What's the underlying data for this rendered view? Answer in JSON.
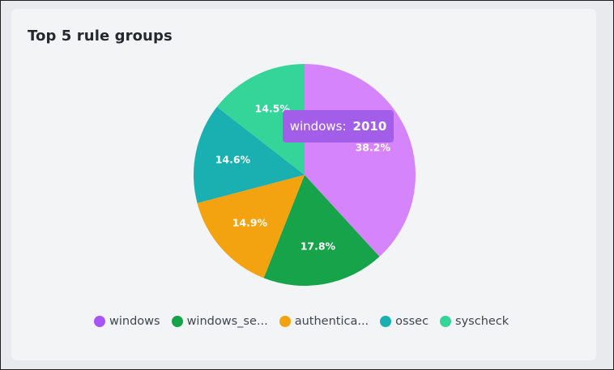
{
  "panel": {
    "title": "Top 5 rule groups"
  },
  "chart_data": {
    "type": "pie",
    "title": "Top 5 rule groups",
    "series": [
      {
        "name": "windows",
        "value": 2010,
        "label": "38.2%",
        "color": "#d684fb",
        "legend_color": "#a855f7",
        "legend_label": "windows"
      },
      {
        "name": "windows_security",
        "label": "17.8%",
        "color": "#17a34a",
        "legend_color": "#17a34a",
        "legend_label": "windows_se..."
      },
      {
        "name": "authentication",
        "label": "14.9%",
        "color": "#f4a310",
        "legend_color": "#f4a310",
        "legend_label": "authentica..."
      },
      {
        "name": "ossec",
        "label": "14.6%",
        "color": "#1aafb0",
        "legend_color": "#1aafb0",
        "legend_label": "ossec"
      },
      {
        "name": "syscheck",
        "label": "14.5%",
        "color": "#35d499",
        "legend_color": "#35d499",
        "legend_label": "syscheck"
      }
    ],
    "percentages": [
      38.2,
      17.8,
      14.9,
      14.6,
      14.5
    ],
    "legend_position": "bottom"
  },
  "tooltip": {
    "series": "windows:",
    "value": "2010"
  }
}
